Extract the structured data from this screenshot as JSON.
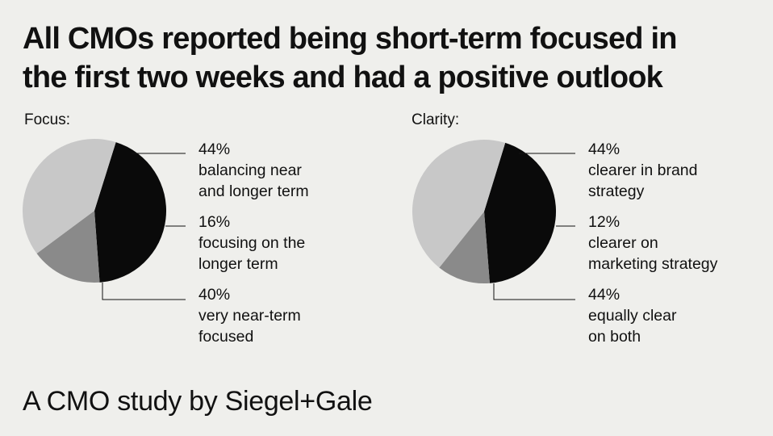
{
  "title": {
    "line1": "All CMOs reported being short-term focused in",
    "line2": "the first two weeks and had a positive outlook"
  },
  "colors": {
    "background": "#efefec",
    "black": "#0a0a0a",
    "dark_gray": "#8a8a8a",
    "light_gray": "#c8c8c8"
  },
  "chart_data": [
    {
      "type": "pie",
      "title": "Focus:",
      "slices": [
        {
          "value": 44,
          "pct": "44%",
          "line1": "balancing near",
          "line2": "and longer term",
          "color": "#0a0a0a"
        },
        {
          "value": 16,
          "pct": "16%",
          "line1": "focusing on the",
          "line2": "longer term",
          "color": "#8a8a8a"
        },
        {
          "value": 40,
          "pct": "40%",
          "line1": "very near-term",
          "line2": "focused",
          "color": "#c8c8c8"
        }
      ]
    },
    {
      "type": "pie",
      "title": "Clarity:",
      "slices": [
        {
          "value": 44,
          "pct": "44%",
          "line1": "clearer in brand",
          "line2": "strategy",
          "color": "#0a0a0a"
        },
        {
          "value": 12,
          "pct": "12%",
          "line1": "clearer on",
          "line2": "marketing strategy",
          "color": "#8a8a8a"
        },
        {
          "value": 44,
          "pct": "44%",
          "line1": "equally clear",
          "line2": "on both",
          "color": "#c8c8c8"
        }
      ]
    }
  ],
  "footer": "A CMO study by Siegel+Gale"
}
